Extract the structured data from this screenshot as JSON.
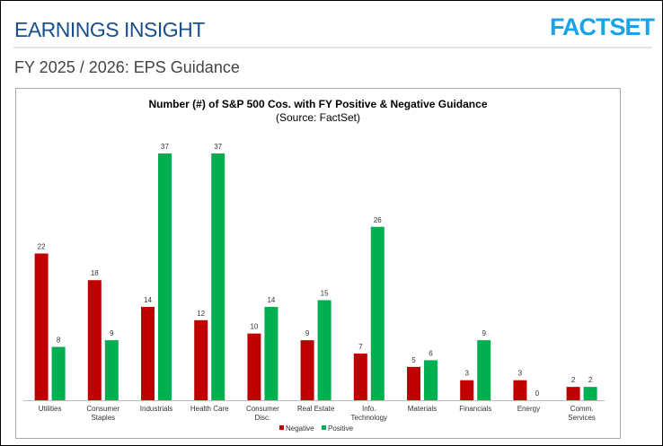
{
  "header": {
    "title": "EARNINGS INSIGHT",
    "logo_text": "FACTSET",
    "subtitle": "FY 2025 / 2026: EPS Guidance"
  },
  "chart_data": {
    "type": "bar",
    "title": "Number (#) of S&P 500 Cos. with FY Positive & Negative Guidance",
    "subtitle": "(Source: FactSet)",
    "categories": [
      [
        "Utilities"
      ],
      [
        "Consumer",
        "Staples"
      ],
      [
        "Industrials"
      ],
      [
        "Health Care"
      ],
      [
        "Consumer",
        "Disc."
      ],
      [
        "Real Estate"
      ],
      [
        "Info.",
        "Technology"
      ],
      [
        "Materials"
      ],
      [
        "Financials"
      ],
      [
        "Energy"
      ],
      [
        "Comm.",
        "Services"
      ]
    ],
    "series": [
      {
        "name": "Negative",
        "color": "#c00000",
        "values": [
          22,
          18,
          14,
          12,
          10,
          9,
          7,
          5,
          3,
          3,
          2
        ]
      },
      {
        "name": "Positive",
        "color": "#00b050",
        "values": [
          8,
          9,
          37,
          37,
          14,
          15,
          26,
          6,
          9,
          0,
          2
        ]
      }
    ],
    "ylim": [
      0,
      37
    ],
    "grid": false,
    "legend": "bottom",
    "data_labels": true
  }
}
